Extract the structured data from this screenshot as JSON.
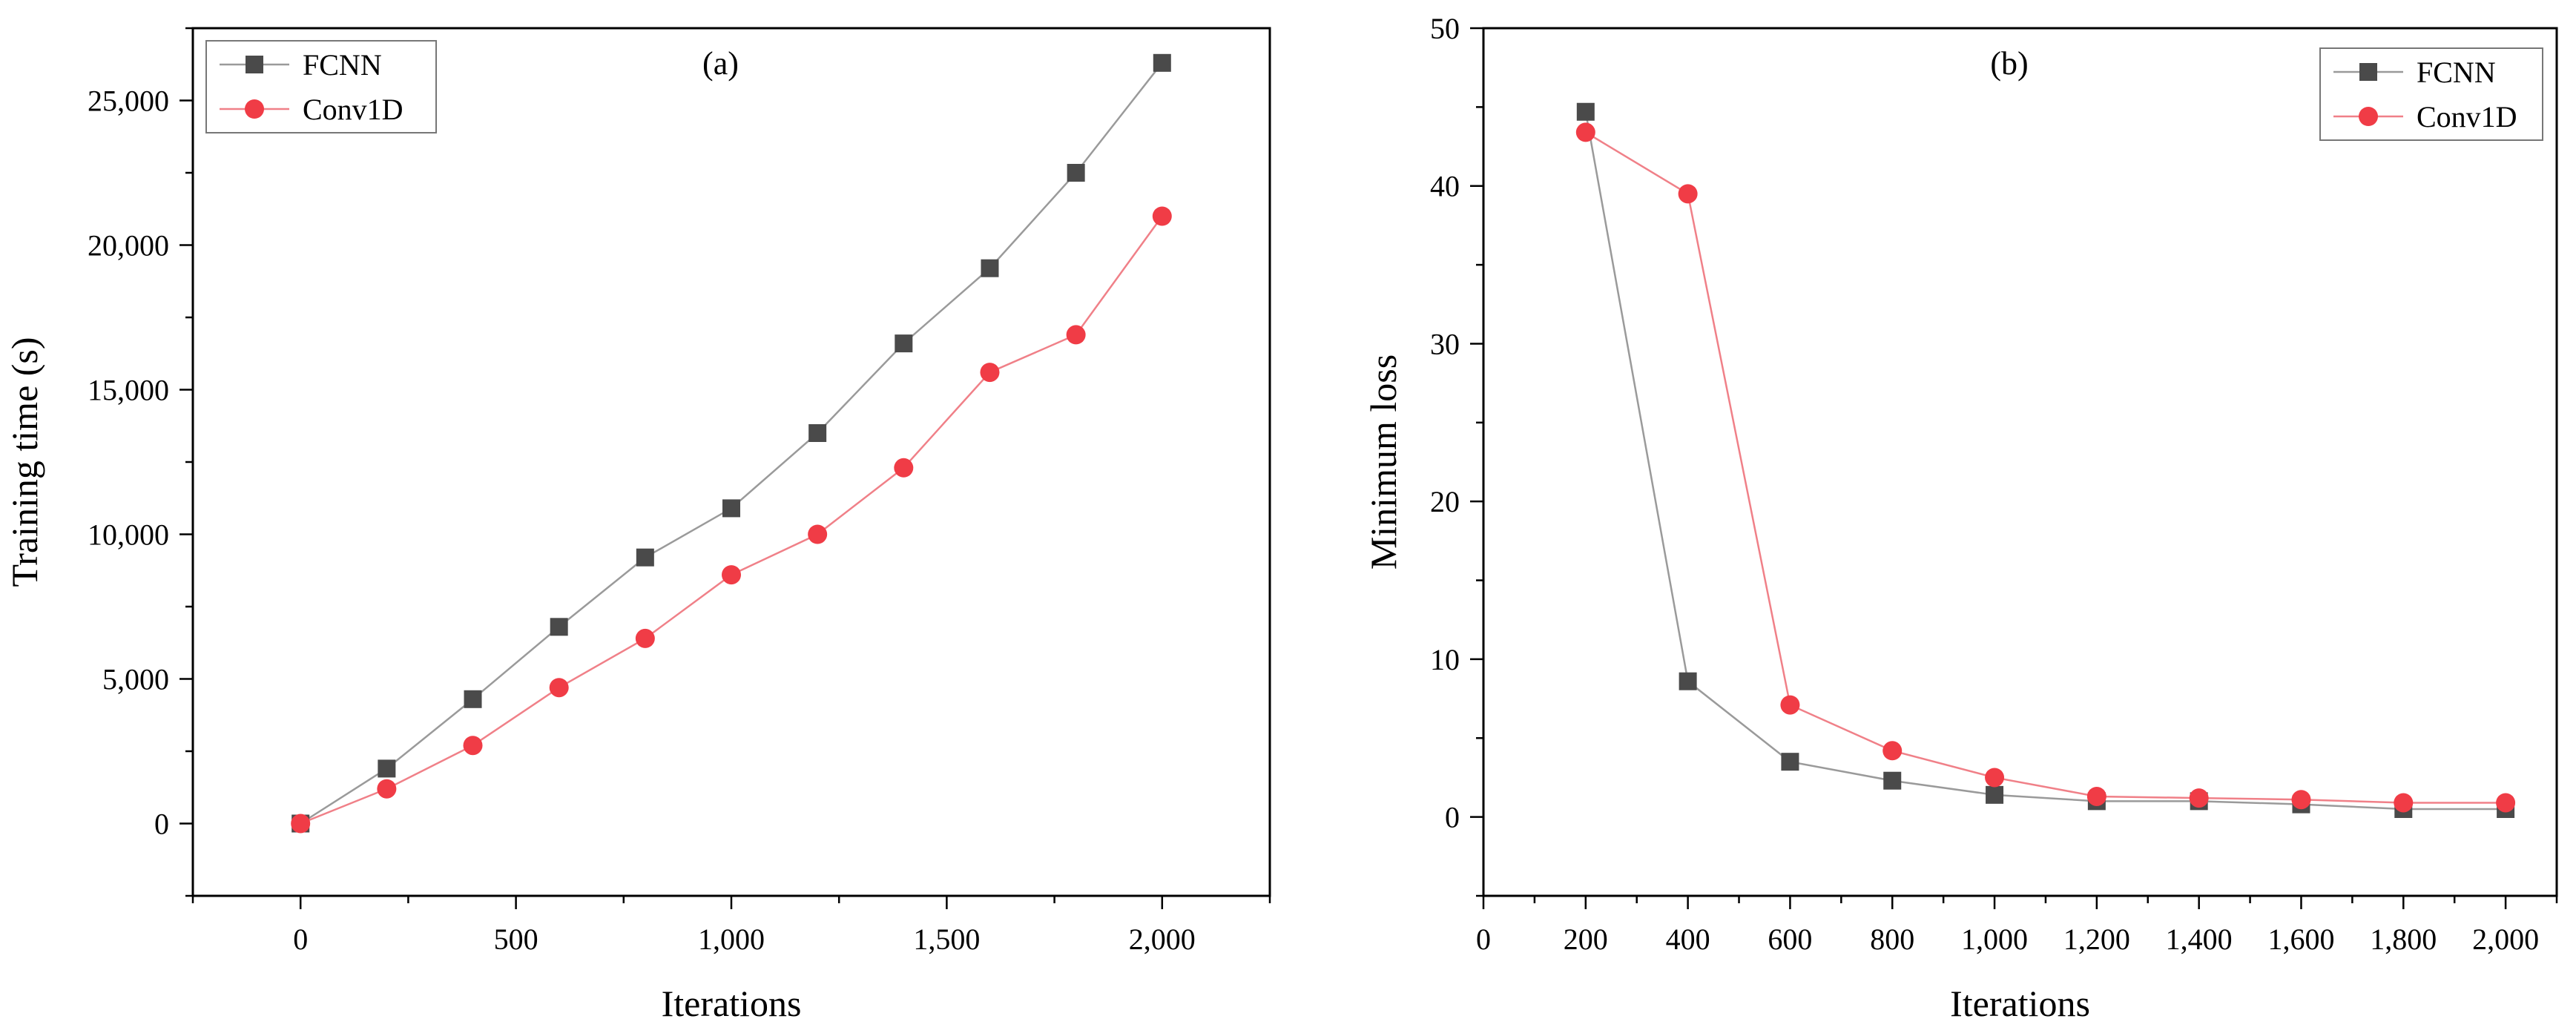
{
  "chart_data": [
    {
      "type": "line",
      "panel_label": "(a)",
      "xlabel": "Iterations",
      "ylabel": "Training time (s)",
      "xlim": [
        -250,
        2250
      ],
      "ylim": [
        -2500,
        27500
      ],
      "xticks": [
        0,
        500,
        1000,
        1500,
        2000
      ],
      "xtick_labels": [
        "0",
        "500",
        "1,000",
        "1,500",
        "2,000"
      ],
      "yticks": [
        0,
        5000,
        10000,
        15000,
        20000,
        25000
      ],
      "ytick_labels": [
        "0",
        "5,000",
        "10,000",
        "15,000",
        "20,000",
        "25,000"
      ],
      "legend_position": "top-left",
      "x": [
        0,
        200,
        400,
        600,
        800,
        1000,
        1200,
        1400,
        1600,
        1800,
        2000
      ],
      "series": [
        {
          "name": "FCNN",
          "color": "#4a4a4a",
          "line_color": "#9a9a9a",
          "marker": "square",
          "values": [
            0,
            1900,
            4300,
            6800,
            9200,
            10900,
            13500,
            16600,
            19200,
            22500,
            26300
          ]
        },
        {
          "name": "Conv1D",
          "color": "#f03c46",
          "line_color": "#f08088",
          "marker": "circle",
          "values": [
            0,
            1200,
            2700,
            4700,
            6400,
            8600,
            10000,
            12300,
            15600,
            16900,
            21000
          ]
        }
      ]
    },
    {
      "type": "line",
      "panel_label": "(b)",
      "xlabel": "Iterations",
      "ylabel": "Minimum loss",
      "xlim": [
        0,
        2100
      ],
      "ylim": [
        -5,
        50
      ],
      "xticks": [
        0,
        200,
        400,
        600,
        800,
        1000,
        1200,
        1400,
        1600,
        1800,
        2000
      ],
      "xtick_labels": [
        "0",
        "200",
        "400",
        "600",
        "800",
        "1,000",
        "1,200",
        "1,400",
        "1,600",
        "1,800",
        "2,000"
      ],
      "yticks": [
        0,
        10,
        20,
        30,
        40,
        50
      ],
      "ytick_labels": [
        "0",
        "10",
        "20",
        "30",
        "40",
        "50"
      ],
      "legend_position": "top-right",
      "x": [
        200,
        400,
        600,
        800,
        1000,
        1200,
        1400,
        1600,
        1800,
        2000
      ],
      "series": [
        {
          "name": "FCNN",
          "color": "#4a4a4a",
          "line_color": "#9a9a9a",
          "marker": "square",
          "values": [
            44.7,
            8.6,
            3.5,
            2.3,
            1.4,
            1.0,
            1.0,
            0.8,
            0.5,
            0.5
          ]
        },
        {
          "name": "Conv1D",
          "color": "#f03c46",
          "line_color": "#f08088",
          "marker": "circle",
          "values": [
            43.4,
            39.5,
            7.1,
            4.2,
            2.5,
            1.3,
            1.2,
            1.1,
            0.9,
            0.9
          ]
        }
      ]
    }
  ]
}
